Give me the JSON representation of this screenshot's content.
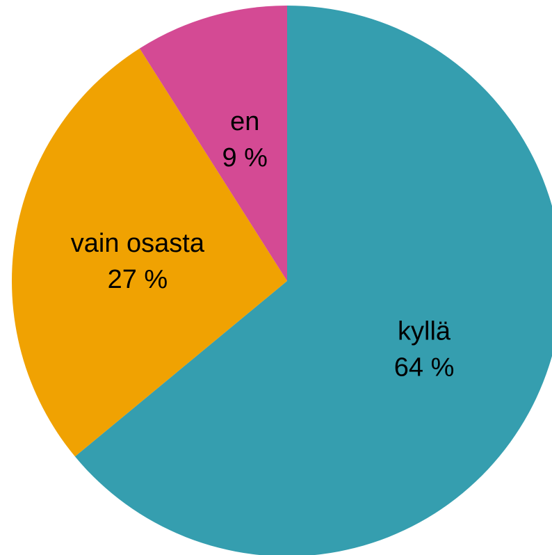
{
  "chart_data": {
    "type": "pie",
    "title": "",
    "start": "top",
    "direction": "clockwise",
    "slices": [
      {
        "label": "kyllä",
        "value": 64,
        "value_label": "64 %",
        "color": "#359EAF"
      },
      {
        "label": "vain osasta",
        "value": 27,
        "value_label": "27 %",
        "color": "#F0A202"
      },
      {
        "label": "en",
        "value": 9,
        "value_label": "9 %",
        "color": "#D44A94"
      }
    ]
  }
}
